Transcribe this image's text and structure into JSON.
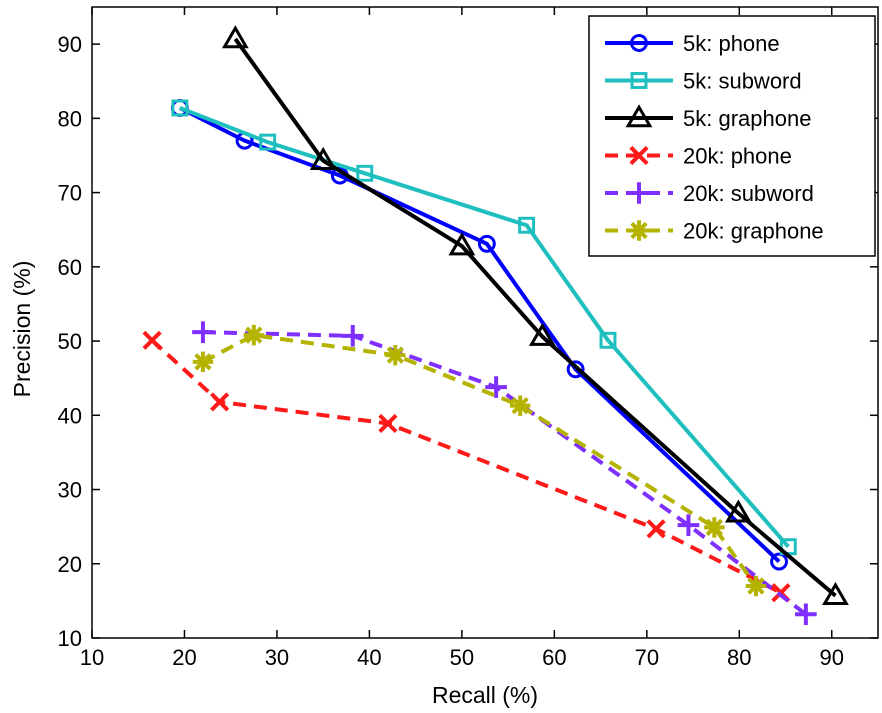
{
  "chart_data": {
    "type": "line",
    "xlabel": "Recall (%)",
    "ylabel": "Precision (%)",
    "xlim": [
      10,
      95
    ],
    "ylim": [
      10,
      95
    ],
    "xticks": [
      10,
      20,
      30,
      40,
      50,
      60,
      70,
      80,
      90
    ],
    "yticks": [
      10,
      20,
      30,
      40,
      50,
      60,
      70,
      80,
      90
    ],
    "grid": false,
    "legend_position": "top-right",
    "series": [
      {
        "name": "5k: phone",
        "color": "#0000ff",
        "dash": "solid",
        "marker": "circle",
        "x": [
          19.5,
          26.5,
          36.8,
          52.7,
          62.3,
          84.3
        ],
        "y": [
          81.4,
          77.0,
          72.3,
          63.1,
          46.2,
          20.3
        ]
      },
      {
        "name": "5k: subword",
        "color": "#1fbfbf",
        "dash": "solid",
        "marker": "square",
        "x": [
          19.5,
          29.0,
          39.5,
          57.0,
          65.8,
          85.3
        ],
        "y": [
          81.4,
          76.8,
          72.6,
          65.6,
          50.1,
          22.3
        ]
      },
      {
        "name": "5k: graphone",
        "color": "#000000",
        "dash": "solid",
        "marker": "triangle",
        "x": [
          25.5,
          35.0,
          50.0,
          58.7,
          79.9,
          90.4
        ],
        "y": [
          90.7,
          74.3,
          62.8,
          50.6,
          26.8,
          15.7
        ]
      },
      {
        "name": "20k: phone",
        "color": "#ff1a1a",
        "dash": "dashed",
        "marker": "x",
        "x": [
          16.5,
          23.8,
          42.0,
          71.0,
          84.5
        ],
        "y": [
          50.1,
          41.8,
          38.9,
          24.7,
          16.1
        ]
      },
      {
        "name": "20k: subword",
        "color": "#7f2fff",
        "dash": "dashed",
        "marker": "plus",
        "x": [
          22.0,
          38.2,
          53.7,
          74.5,
          87.2
        ],
        "y": [
          51.2,
          50.7,
          43.8,
          25.2,
          13.2
        ]
      },
      {
        "name": "20k: graphone",
        "color": "#b3b300",
        "dash": "dashed",
        "marker": "asterisk",
        "x": [
          22.0,
          27.5,
          42.8,
          56.3,
          77.3,
          81.8
        ],
        "y": [
          47.2,
          50.8,
          48.1,
          41.3,
          24.9,
          17.0
        ]
      }
    ]
  }
}
